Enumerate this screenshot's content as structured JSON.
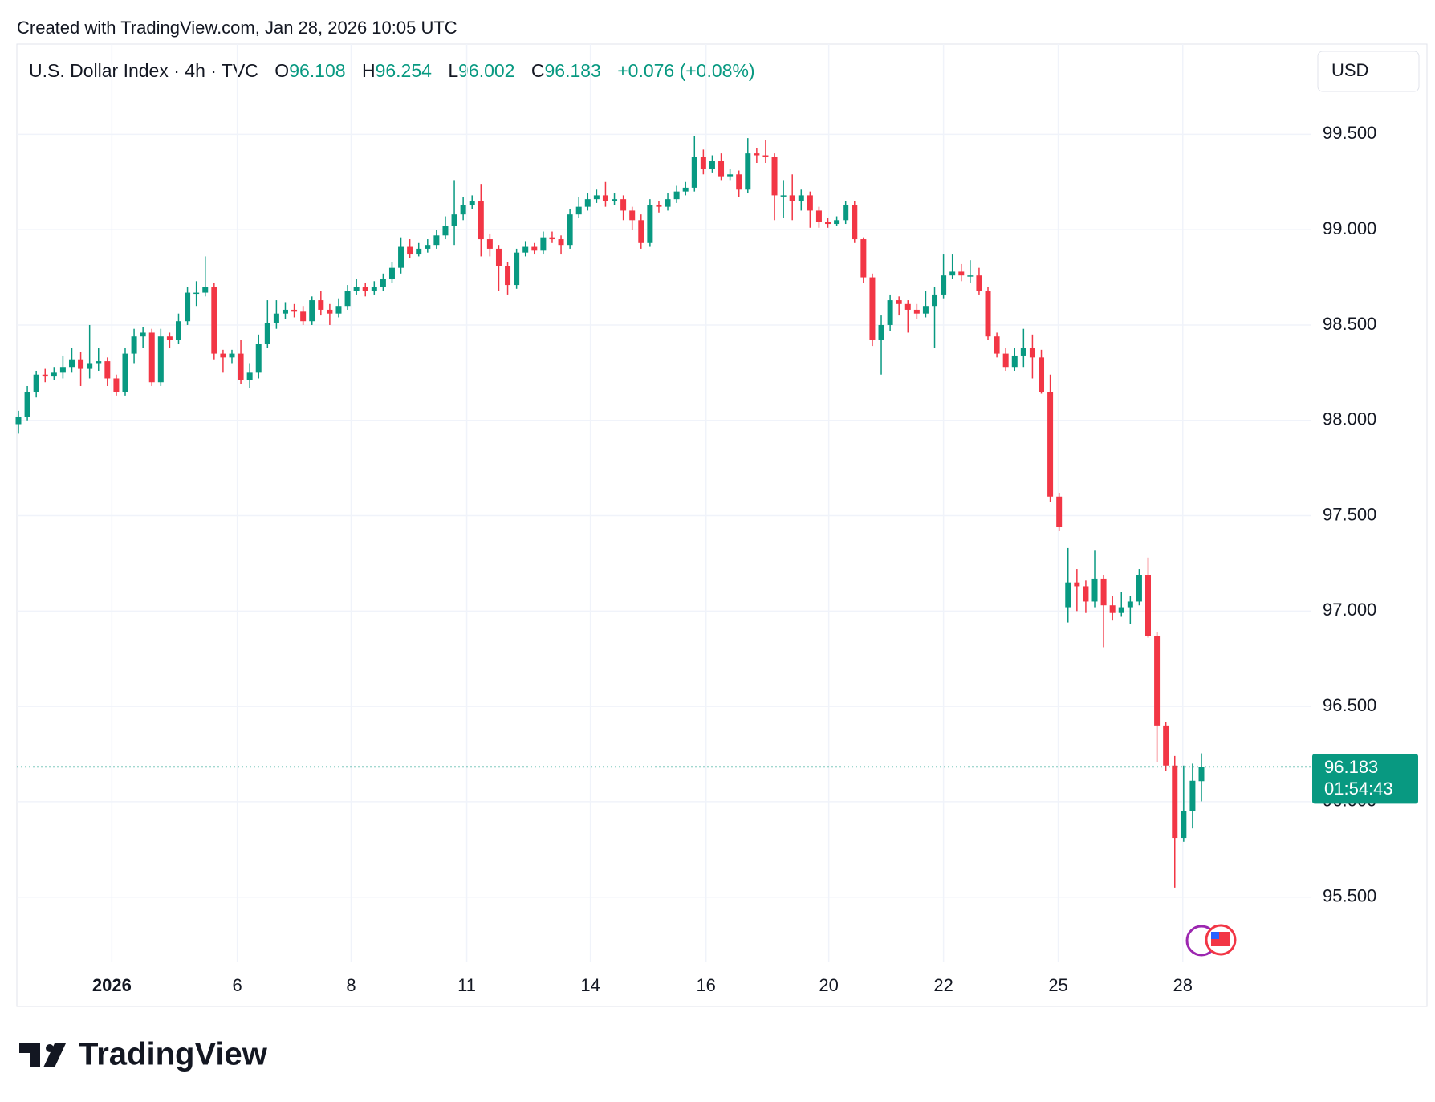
{
  "header": {
    "created": "Created with TradingView.com, Jan 28, 2026 10:05 UTC",
    "symbol": "U.S. Dollar Index · 4h · TVC",
    "o_label": "O",
    "h_label": "H",
    "l_label": "L",
    "c_label": "C",
    "change": "+0.076 (+0.08%)",
    "currency": "USD",
    "countdown": "01:54:43",
    "logo": "TradingView"
  },
  "chart_data": {
    "type": "candlestick",
    "up_color": "#089981",
    "down_color": "#f23645",
    "grid": true,
    "ylim": [
      95.162,
      99.973
    ],
    "yticks": [
      {
        "value": 95.5,
        "label": "95.500"
      },
      {
        "value": 96,
        "label": "96.000"
      },
      {
        "value": 96.5,
        "label": "96.500"
      },
      {
        "value": 97,
        "label": "97.000"
      },
      {
        "value": 97.5,
        "label": "97.500"
      },
      {
        "value": 98,
        "label": "98.000"
      },
      {
        "value": 98.5,
        "label": "98.500"
      },
      {
        "value": 99,
        "label": "99.000"
      },
      {
        "value": 99.5,
        "label": "99.500"
      }
    ],
    "xlim": [
      0,
      133
    ],
    "xticks": [
      {
        "value": 10.5,
        "label": "2026"
      },
      {
        "value": 24.6,
        "label": "6"
      },
      {
        "value": 37.4,
        "label": "8"
      },
      {
        "value": 50.4,
        "label": "11"
      },
      {
        "value": 64.3,
        "label": "14"
      },
      {
        "value": 77.3,
        "label": "16"
      },
      {
        "value": 91.1,
        "label": "20"
      },
      {
        "value": 104,
        "label": "22"
      },
      {
        "value": 116.9,
        "label": "25"
      },
      {
        "value": 130.9,
        "label": "28"
      }
    ],
    "ohlc": [
      [
        97.98,
        98.05,
        97.93,
        98.02
      ],
      [
        98.02,
        98.18,
        98.0,
        98.15
      ],
      [
        98.15,
        98.26,
        98.12,
        98.24
      ],
      [
        98.24,
        98.27,
        98.2,
        98.23
      ],
      [
        98.23,
        98.28,
        98.21,
        98.25
      ],
      [
        98.25,
        98.34,
        98.22,
        98.28
      ],
      [
        98.28,
        98.38,
        98.25,
        98.32
      ],
      [
        98.32,
        98.36,
        98.18,
        98.27
      ],
      [
        98.27,
        98.5,
        98.22,
        98.3
      ],
      [
        98.3,
        98.38,
        98.26,
        98.31
      ],
      [
        98.31,
        98.33,
        98.18,
        98.22
      ],
      [
        98.22,
        98.24,
        98.13,
        98.15
      ],
      [
        98.15,
        98.38,
        98.13,
        98.35
      ],
      [
        98.35,
        98.48,
        98.3,
        98.44
      ],
      [
        98.44,
        98.49,
        98.38,
        98.46
      ],
      [
        98.46,
        98.48,
        98.18,
        98.2
      ],
      [
        98.2,
        98.48,
        98.18,
        98.44
      ],
      [
        98.44,
        98.46,
        98.38,
        98.42
      ],
      [
        98.42,
        98.56,
        98.4,
        98.52
      ],
      [
        98.52,
        98.7,
        98.5,
        98.67
      ],
      [
        98.67,
        98.73,
        98.6,
        98.67
      ],
      [
        98.67,
        98.86,
        98.65,
        98.7
      ],
      [
        98.7,
        98.72,
        98.32,
        98.35
      ],
      [
        98.35,
        98.37,
        98.25,
        98.33
      ],
      [
        98.33,
        98.37,
        98.3,
        98.35
      ],
      [
        98.35,
        98.42,
        98.19,
        98.21
      ],
      [
        98.21,
        98.3,
        98.17,
        98.25
      ],
      [
        98.25,
        98.45,
        98.22,
        98.4
      ],
      [
        98.4,
        98.63,
        98.38,
        98.51
      ],
      [
        98.51,
        98.63,
        98.48,
        98.56
      ],
      [
        98.56,
        98.62,
        98.53,
        98.58
      ],
      [
        98.58,
        98.61,
        98.54,
        98.57
      ],
      [
        98.57,
        98.6,
        98.5,
        98.52
      ],
      [
        98.52,
        98.65,
        98.5,
        98.63
      ],
      [
        98.63,
        98.68,
        98.55,
        98.58
      ],
      [
        98.58,
        98.61,
        98.5,
        98.56
      ],
      [
        98.56,
        98.64,
        98.54,
        98.6
      ],
      [
        98.6,
        98.71,
        98.58,
        98.68
      ],
      [
        98.68,
        98.74,
        98.66,
        98.7
      ],
      [
        98.7,
        98.72,
        98.65,
        98.68
      ],
      [
        98.68,
        98.73,
        98.66,
        98.7
      ],
      [
        98.7,
        98.77,
        98.68,
        98.74
      ],
      [
        98.74,
        98.83,
        98.72,
        98.8
      ],
      [
        98.8,
        98.96,
        98.77,
        98.91
      ],
      [
        98.91,
        98.95,
        98.85,
        98.87
      ],
      [
        98.87,
        98.93,
        98.86,
        98.9
      ],
      [
        98.9,
        98.95,
        98.88,
        98.92
      ],
      [
        98.92,
        99.0,
        98.9,
        98.97
      ],
      [
        98.97,
        99.07,
        98.95,
        99.02
      ],
      [
        99.02,
        99.26,
        98.92,
        99.08
      ],
      [
        99.08,
        99.17,
        99.05,
        99.13
      ],
      [
        99.13,
        99.18,
        99.11,
        99.15
      ],
      [
        99.15,
        99.24,
        98.86,
        98.95
      ],
      [
        98.95,
        98.98,
        98.86,
        98.9
      ],
      [
        98.9,
        98.92,
        98.68,
        98.81
      ],
      [
        98.81,
        98.83,
        98.66,
        98.71
      ],
      [
        98.71,
        98.9,
        98.69,
        98.88
      ],
      [
        98.88,
        98.94,
        98.86,
        98.91
      ],
      [
        98.91,
        98.93,
        98.87,
        98.89
      ],
      [
        98.89,
        98.99,
        98.87,
        98.96
      ],
      [
        98.96,
        98.99,
        98.93,
        98.95
      ],
      [
        98.95,
        98.97,
        98.87,
        98.92
      ],
      [
        98.92,
        99.11,
        98.9,
        99.08
      ],
      [
        99.08,
        99.17,
        99.06,
        99.12
      ],
      [
        99.12,
        99.19,
        99.1,
        99.16
      ],
      [
        99.16,
        99.21,
        99.14,
        99.18
      ],
      [
        99.18,
        99.25,
        99.12,
        99.15
      ],
      [
        99.15,
        99.19,
        99.13,
        99.16
      ],
      [
        99.16,
        99.18,
        99.05,
        99.1
      ],
      [
        99.1,
        99.12,
        99.0,
        99.05
      ],
      [
        99.05,
        99.08,
        98.9,
        98.93
      ],
      [
        98.93,
        99.16,
        98.91,
        99.13
      ],
      [
        99.13,
        99.15,
        99.09,
        99.12
      ],
      [
        99.12,
        99.19,
        99.1,
        99.16
      ],
      [
        99.16,
        99.23,
        99.14,
        99.2
      ],
      [
        99.2,
        99.25,
        99.18,
        99.22
      ],
      [
        99.22,
        99.49,
        99.2,
        99.38
      ],
      [
        99.38,
        99.42,
        99.29,
        99.32
      ],
      [
        99.32,
        99.39,
        99.3,
        99.36
      ],
      [
        99.36,
        99.4,
        99.26,
        99.28
      ],
      [
        99.28,
        99.32,
        99.26,
        99.29
      ],
      [
        99.29,
        99.31,
        99.17,
        99.21
      ],
      [
        99.21,
        99.48,
        99.19,
        99.4
      ],
      [
        99.4,
        99.43,
        99.35,
        99.39
      ],
      [
        99.39,
        99.47,
        99.35,
        99.38
      ],
      [
        99.38,
        99.4,
        99.05,
        99.18
      ],
      [
        99.18,
        99.26,
        99.06,
        99.18
      ],
      [
        99.18,
        99.29,
        99.05,
        99.15
      ],
      [
        99.15,
        99.21,
        99.1,
        99.18
      ],
      [
        99.18,
        99.2,
        99.01,
        99.1
      ],
      [
        99.1,
        99.12,
        99.01,
        99.04
      ],
      [
        99.04,
        99.06,
        99.01,
        99.03
      ],
      [
        99.03,
        99.07,
        99.02,
        99.05
      ],
      [
        99.05,
        99.15,
        99.03,
        99.13
      ],
      [
        99.13,
        99.15,
        98.93,
        98.95
      ],
      [
        98.95,
        98.96,
        98.72,
        98.75
      ],
      [
        98.75,
        98.77,
        98.39,
        98.42
      ],
      [
        98.42,
        98.55,
        98.24,
        98.5
      ],
      [
        98.5,
        98.66,
        98.47,
        98.63
      ],
      [
        98.63,
        98.65,
        98.55,
        98.61
      ],
      [
        98.61,
        98.63,
        98.46,
        98.58
      ],
      [
        98.58,
        98.61,
        98.53,
        98.56
      ],
      [
        98.56,
        98.68,
        98.54,
        98.6
      ],
      [
        98.6,
        98.7,
        98.38,
        98.66
      ],
      [
        98.66,
        98.87,
        98.64,
        98.76
      ],
      [
        98.76,
        98.87,
        98.74,
        98.78
      ],
      [
        98.78,
        98.82,
        98.73,
        98.76
      ],
      [
        98.76,
        98.84,
        98.72,
        98.76
      ],
      [
        98.76,
        98.8,
        98.66,
        98.68
      ],
      [
        98.68,
        98.7,
        98.42,
        98.44
      ],
      [
        98.44,
        98.46,
        98.33,
        98.35
      ],
      [
        98.35,
        98.38,
        98.26,
        98.28
      ],
      [
        98.28,
        98.38,
        98.26,
        98.34
      ],
      [
        98.34,
        98.48,
        98.28,
        98.38
      ],
      [
        98.38,
        98.45,
        98.22,
        98.33
      ],
      [
        98.33,
        98.37,
        98.14,
        98.15
      ],
      [
        98.15,
        98.24,
        97.57,
        97.6
      ],
      [
        97.6,
        97.62,
        97.42,
        97.44
      ],
      [
        97.02,
        97.33,
        96.94,
        97.15
      ],
      [
        97.15,
        97.22,
        97.0,
        97.13
      ],
      [
        97.13,
        97.16,
        96.99,
        97.05
      ],
      [
        97.05,
        97.32,
        97.02,
        97.17
      ],
      [
        97.17,
        97.19,
        96.81,
        97.03
      ],
      [
        97.03,
        97.08,
        96.95,
        96.99
      ],
      [
        96.99,
        97.1,
        96.97,
        97.02
      ],
      [
        97.02,
        97.08,
        96.93,
        97.05
      ],
      [
        97.05,
        97.22,
        97.03,
        97.19
      ],
      [
        97.19,
        97.28,
        96.86,
        96.87
      ],
      [
        96.87,
        96.89,
        96.21,
        96.4
      ],
      [
        96.4,
        96.42,
        96.16,
        96.19
      ],
      [
        96.19,
        96.24,
        95.55,
        95.81
      ],
      [
        95.81,
        96.19,
        95.79,
        95.95
      ],
      [
        95.95,
        96.2,
        95.86,
        96.11
      ],
      [
        96.108,
        96.254,
        96.002,
        96.183
      ]
    ]
  }
}
